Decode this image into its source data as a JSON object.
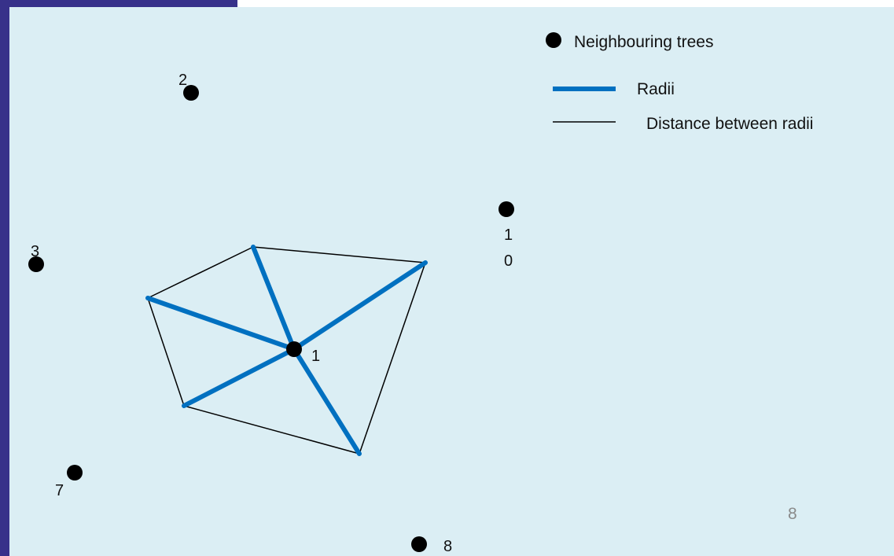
{
  "colors": {
    "background": "#dbeef4",
    "frame": "#37318a",
    "radii": "#0070c0",
    "edges": "#000000",
    "trees": "#000000",
    "page_number": "#8a8a8a"
  },
  "legend": {
    "items": [
      {
        "label": "Neighbouring trees",
        "symbol": "filled-dot"
      },
      {
        "label": "Radii",
        "symbol": "thick-blue-line"
      },
      {
        "label": "Distance between radii",
        "symbol": "thin-black-line"
      }
    ]
  },
  "trees": {
    "center": {
      "label": "1"
    },
    "neighbours": [
      {
        "id": "2",
        "label": "2"
      },
      {
        "id": "3",
        "label": "3"
      },
      {
        "id": "7",
        "label": "7"
      },
      {
        "id": "8",
        "label": "8"
      },
      {
        "id": "10",
        "label_line1": "1",
        "label_line2": "0"
      }
    ]
  },
  "page_number": "8"
}
